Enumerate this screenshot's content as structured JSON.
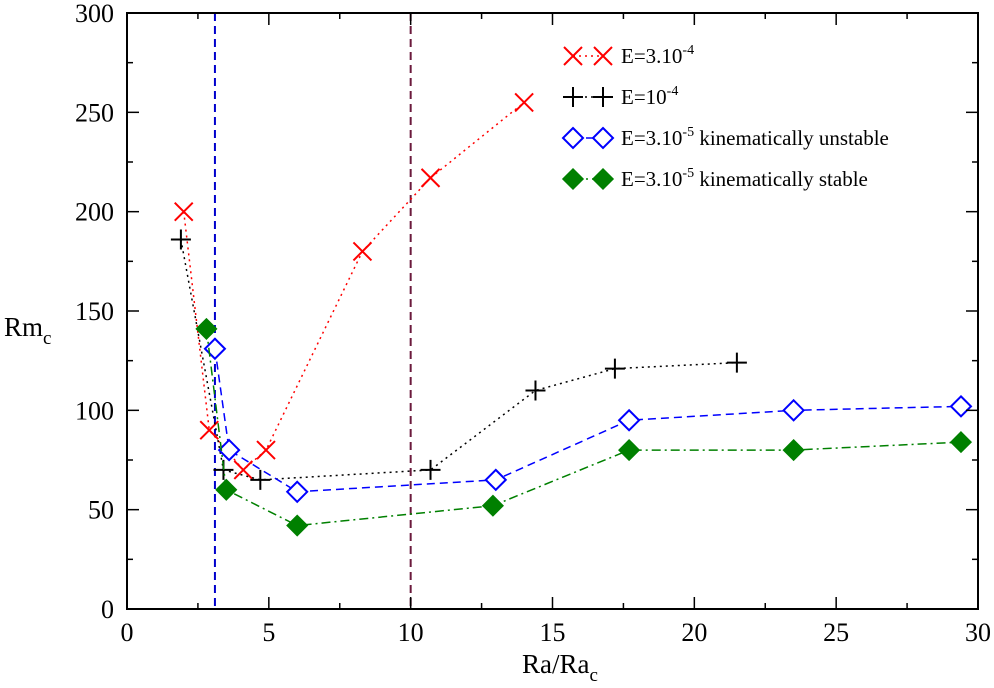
{
  "chart_data": {
    "type": "line",
    "title": "",
    "xlabel": {
      "main": "Ra/Ra",
      "sub": "c"
    },
    "ylabel": {
      "main": "Rm",
      "sub": "c"
    },
    "xlim": [
      0,
      30
    ],
    "ylim": [
      0,
      300
    ],
    "xticks": [
      0,
      5,
      10,
      15,
      20,
      25,
      30
    ],
    "yticks": [
      0,
      50,
      100,
      150,
      200,
      250,
      300
    ],
    "legend_position": "top-right",
    "vertical_lines": [
      {
        "x": 3.1,
        "color": "#0000cc",
        "style": "dashed"
      },
      {
        "x": 10,
        "color": "#6b1a3c",
        "style": "dashed"
      }
    ],
    "series": [
      {
        "name": "E=3.10-4",
        "legend": {
          "base": "E=3.10",
          "sup": "-4",
          "rest": ""
        },
        "color": "#ff0000",
        "marker": "x",
        "line": "dotted",
        "x": [
          2.0,
          2.9,
          4.1,
          4.9,
          8.3,
          10.7,
          14.0
        ],
        "y": [
          200,
          90,
          70,
          80,
          180,
          217,
          255
        ]
      },
      {
        "name": "E=10-4",
        "legend": {
          "base": "E=10",
          "sup": "-4",
          "rest": ""
        },
        "color": "#000000",
        "marker": "plus",
        "line": "dotted",
        "x": [
          1.9,
          3.4,
          4.7,
          10.7,
          14.4,
          17.2,
          21.5
        ],
        "y": [
          186,
          70,
          65,
          70,
          110,
          121,
          124
        ]
      },
      {
        "name": "E=3.10-5 kinematically unstable",
        "legend": {
          "base": "E=3.10",
          "sup": "-5",
          "rest": " kinematically unstable"
        },
        "color": "#0000ff",
        "marker": "diamond-open",
        "line": "dashed",
        "x": [
          3.1,
          3.6,
          6.0,
          13.0,
          17.7,
          23.5,
          29.4
        ],
        "y": [
          131,
          80,
          59,
          65,
          95,
          100,
          102
        ]
      },
      {
        "name": "E=3.10-5 kinematically stable",
        "legend": {
          "base": "E=3.10",
          "sup": "-5",
          "rest": " kinematically stable"
        },
        "color": "#008000",
        "marker": "diamond-filled",
        "line": "dashdot",
        "x": [
          2.8,
          3.5,
          6.0,
          12.9,
          17.7,
          23.5,
          29.4
        ],
        "y": [
          141,
          60,
          42,
          52,
          80,
          80,
          84
        ]
      }
    ]
  }
}
